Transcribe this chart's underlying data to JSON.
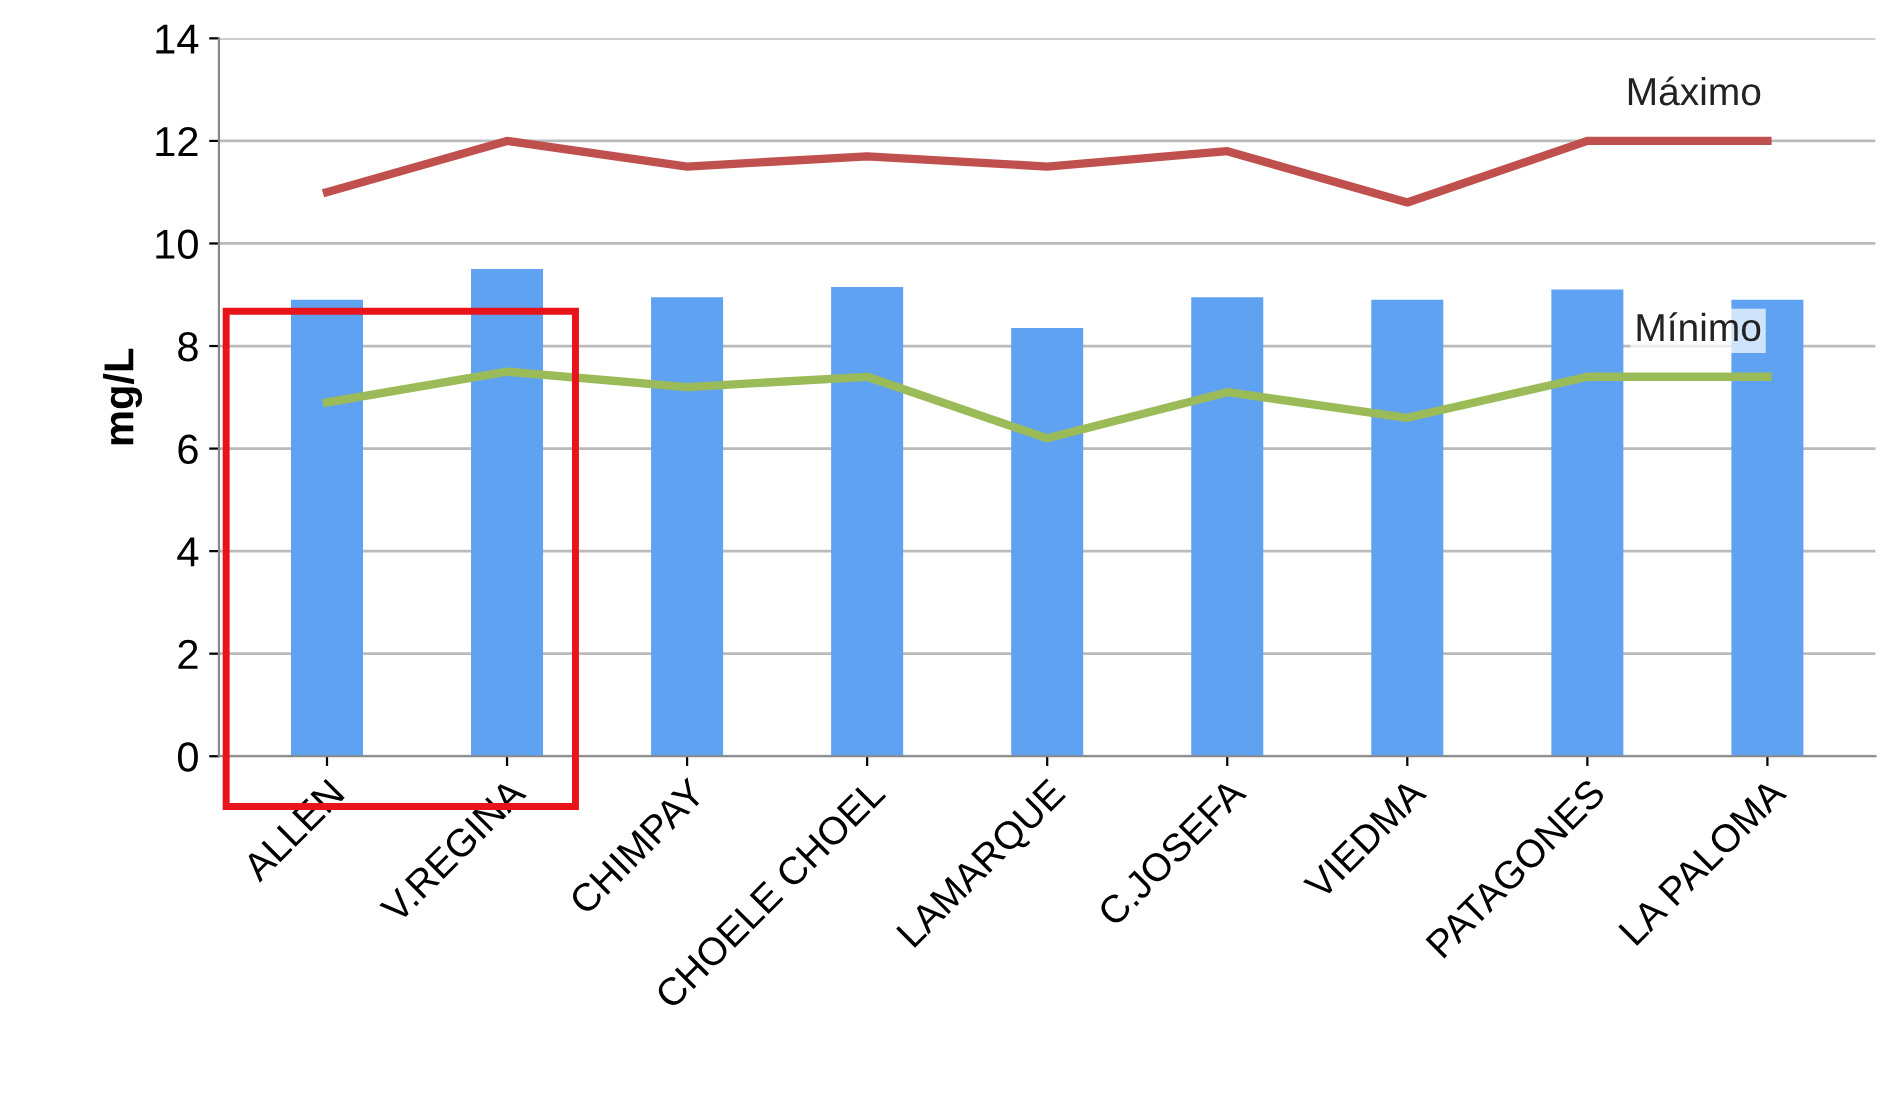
{
  "chart_data": {
    "type": "bar",
    "ylabel": "mg/L",
    "categories": [
      "ALLEN",
      "V.REGINA",
      "CHIMPAY",
      "CHOELE CHOEL",
      "LAMARQUE",
      "C.JOSEFA",
      "VIEDMA",
      "PATAGONES",
      "LA PALOMA"
    ],
    "series": [
      {
        "color": "#5fa2f2",
        "values": [
          8.9,
          9.5,
          8.95,
          9.15,
          8.35,
          8.95,
          8.9,
          9.1,
          8.9
        ]
      },
      {
        "type": "line",
        "name": "Máximo",
        "color": "#c0504d",
        "values": [
          11.0,
          12.0,
          11.5,
          11.7,
          11.5,
          11.8,
          10.8,
          12.0,
          12.0
        ]
      },
      {
        "type": "line",
        "name": "Mínimo",
        "color": "#9bbb59",
        "values": [
          6.9,
          7.5,
          7.2,
          7.4,
          6.2,
          7.1,
          6.6,
          7.4,
          7.4
        ]
      }
    ],
    "ylim": [
      0,
      14
    ],
    "yticks": [
      0,
      2,
      4,
      6,
      8,
      10,
      12,
      14
    ],
    "grid": "y",
    "legend": false
  }
}
